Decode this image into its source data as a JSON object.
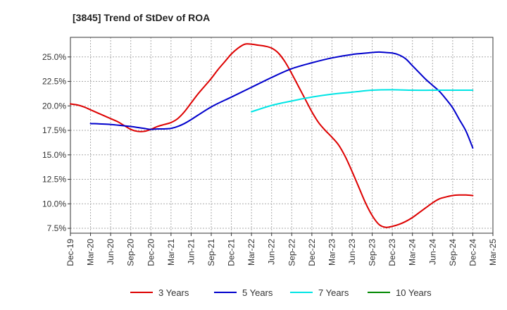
{
  "chart_data": {
    "type": "line",
    "title": "[3845]  Trend of StDev of ROA",
    "xlabel": "",
    "ylabel": "",
    "x_ticks": [
      "Dec-19",
      "Mar-20",
      "Jun-20",
      "Sep-20",
      "Dec-20",
      "Mar-21",
      "Jun-21",
      "Sep-21",
      "Dec-21",
      "Mar-22",
      "Jun-22",
      "Sep-22",
      "Dec-22",
      "Mar-23",
      "Jun-23",
      "Sep-23",
      "Dec-23",
      "Mar-24",
      "Jun-24",
      "Sep-24",
      "Dec-24",
      "Mar-25"
    ],
    "y_ticks": [
      "7.5%",
      "10.0%",
      "12.5%",
      "15.0%",
      "17.5%",
      "20.0%",
      "22.5%",
      "25.0%"
    ],
    "y_tick_values": [
      7.5,
      10.0,
      12.5,
      15.0,
      17.5,
      20.0,
      22.5,
      25.0
    ],
    "ylim": [
      7.0,
      27.0
    ],
    "x_range": [
      "Dec-19",
      "Mar-25"
    ],
    "grid": true,
    "legend_position": "bottom",
    "series": [
      {
        "name": "3 Years",
        "color": "#dd0000",
        "points": [
          [
            "Dec-19",
            20.2
          ],
          [
            "Jan-20",
            20.1
          ],
          [
            "Feb-20",
            19.9
          ],
          [
            "Mar-20",
            19.6
          ],
          [
            "Apr-20",
            19.3
          ],
          [
            "May-20",
            19.0
          ],
          [
            "Jun-20",
            18.7
          ],
          [
            "Jul-20",
            18.4
          ],
          [
            "Aug-20",
            18.0
          ],
          [
            "Sep-20",
            17.6
          ],
          [
            "Oct-20",
            17.4
          ],
          [
            "Nov-20",
            17.4
          ],
          [
            "Dec-20",
            17.6
          ],
          [
            "Jan-21",
            17.9
          ],
          [
            "Feb-21",
            18.1
          ],
          [
            "Mar-21",
            18.3
          ],
          [
            "Apr-21",
            18.7
          ],
          [
            "May-21",
            19.4
          ],
          [
            "Jun-21",
            20.3
          ],
          [
            "Jul-21",
            21.2
          ],
          [
            "Aug-21",
            22.0
          ],
          [
            "Sep-21",
            22.8
          ],
          [
            "Oct-21",
            23.7
          ],
          [
            "Nov-21",
            24.5
          ],
          [
            "Dec-21",
            25.3
          ],
          [
            "Jan-22",
            25.9
          ],
          [
            "Feb-22",
            26.3
          ],
          [
            "Mar-22",
            26.3
          ],
          [
            "Apr-22",
            26.2
          ],
          [
            "May-22",
            26.1
          ],
          [
            "Jun-22",
            25.9
          ],
          [
            "Jul-22",
            25.4
          ],
          [
            "Aug-22",
            24.5
          ],
          [
            "Sep-22",
            23.3
          ],
          [
            "Oct-22",
            22.0
          ],
          [
            "Nov-22",
            20.7
          ],
          [
            "Dec-22",
            19.4
          ],
          [
            "Jan-23",
            18.3
          ],
          [
            "Feb-23",
            17.5
          ],
          [
            "Mar-23",
            16.8
          ],
          [
            "Apr-23",
            16.0
          ],
          [
            "May-23",
            14.8
          ],
          [
            "Jun-23",
            13.3
          ],
          [
            "Jul-23",
            11.7
          ],
          [
            "Aug-23",
            10.1
          ],
          [
            "Sep-23",
            8.8
          ],
          [
            "Oct-23",
            7.9
          ],
          [
            "Nov-23",
            7.6
          ],
          [
            "Dec-23",
            7.7
          ],
          [
            "Jan-24",
            7.9
          ],
          [
            "Feb-24",
            8.2
          ],
          [
            "Mar-24",
            8.6
          ],
          [
            "Apr-24",
            9.1
          ],
          [
            "May-24",
            9.6
          ],
          [
            "Jun-24",
            10.1
          ],
          [
            "Jul-24",
            10.5
          ],
          [
            "Aug-24",
            10.7
          ],
          [
            "Sep-24",
            10.85
          ],
          [
            "Oct-24",
            10.9
          ],
          [
            "Nov-24",
            10.9
          ],
          [
            "Dec-24",
            10.85
          ]
        ]
      },
      {
        "name": "5 Years",
        "color": "#0000cc",
        "points": [
          [
            "Mar-20",
            18.2
          ],
          [
            "Jun-20",
            18.1
          ],
          [
            "Sep-20",
            17.9
          ],
          [
            "Oct-20",
            17.8
          ],
          [
            "Nov-20",
            17.7
          ],
          [
            "Dec-20",
            17.6
          ],
          [
            "Jan-21",
            17.65
          ],
          [
            "Feb-21",
            17.65
          ],
          [
            "Mar-21",
            17.7
          ],
          [
            "Apr-21",
            17.9
          ],
          [
            "May-21",
            18.2
          ],
          [
            "Jun-21",
            18.6
          ],
          [
            "Sep-21",
            19.9
          ],
          [
            "Dec-21",
            20.9
          ],
          [
            "Mar-22",
            21.9
          ],
          [
            "Jun-22",
            22.9
          ],
          [
            "Sep-22",
            23.8
          ],
          [
            "Dec-22",
            24.4
          ],
          [
            "Mar-23",
            24.9
          ],
          [
            "Jun-23",
            25.25
          ],
          [
            "Sep-23",
            25.45
          ],
          [
            "Oct-23",
            25.5
          ],
          [
            "Nov-23",
            25.45
          ],
          [
            "Dec-23",
            25.4
          ],
          [
            "Jan-24",
            25.2
          ],
          [
            "Feb-24",
            24.8
          ],
          [
            "Mar-24",
            24.1
          ],
          [
            "Apr-24",
            23.4
          ],
          [
            "May-24",
            22.7
          ],
          [
            "Jun-24",
            22.1
          ],
          [
            "Jul-24",
            21.5
          ],
          [
            "Aug-24",
            20.7
          ],
          [
            "Sep-24",
            19.8
          ],
          [
            "Oct-24",
            18.6
          ],
          [
            "Nov-24",
            17.4
          ],
          [
            "Dec-24",
            15.7
          ]
        ]
      },
      {
        "name": "7 Years",
        "color": "#00e5e5",
        "points": [
          [
            "Mar-22",
            19.4
          ],
          [
            "Jun-22",
            20.05
          ],
          [
            "Sep-22",
            20.5
          ],
          [
            "Dec-22",
            20.9
          ],
          [
            "Mar-23",
            21.2
          ],
          [
            "Jun-23",
            21.4
          ],
          [
            "Sep-23",
            21.6
          ],
          [
            "Dec-23",
            21.65
          ],
          [
            "Mar-24",
            21.6
          ],
          [
            "Jun-24",
            21.6
          ],
          [
            "Sep-24",
            21.6
          ],
          [
            "Dec-24",
            21.6
          ]
        ]
      },
      {
        "name": "10 Years",
        "color": "#008800",
        "points": []
      }
    ]
  }
}
